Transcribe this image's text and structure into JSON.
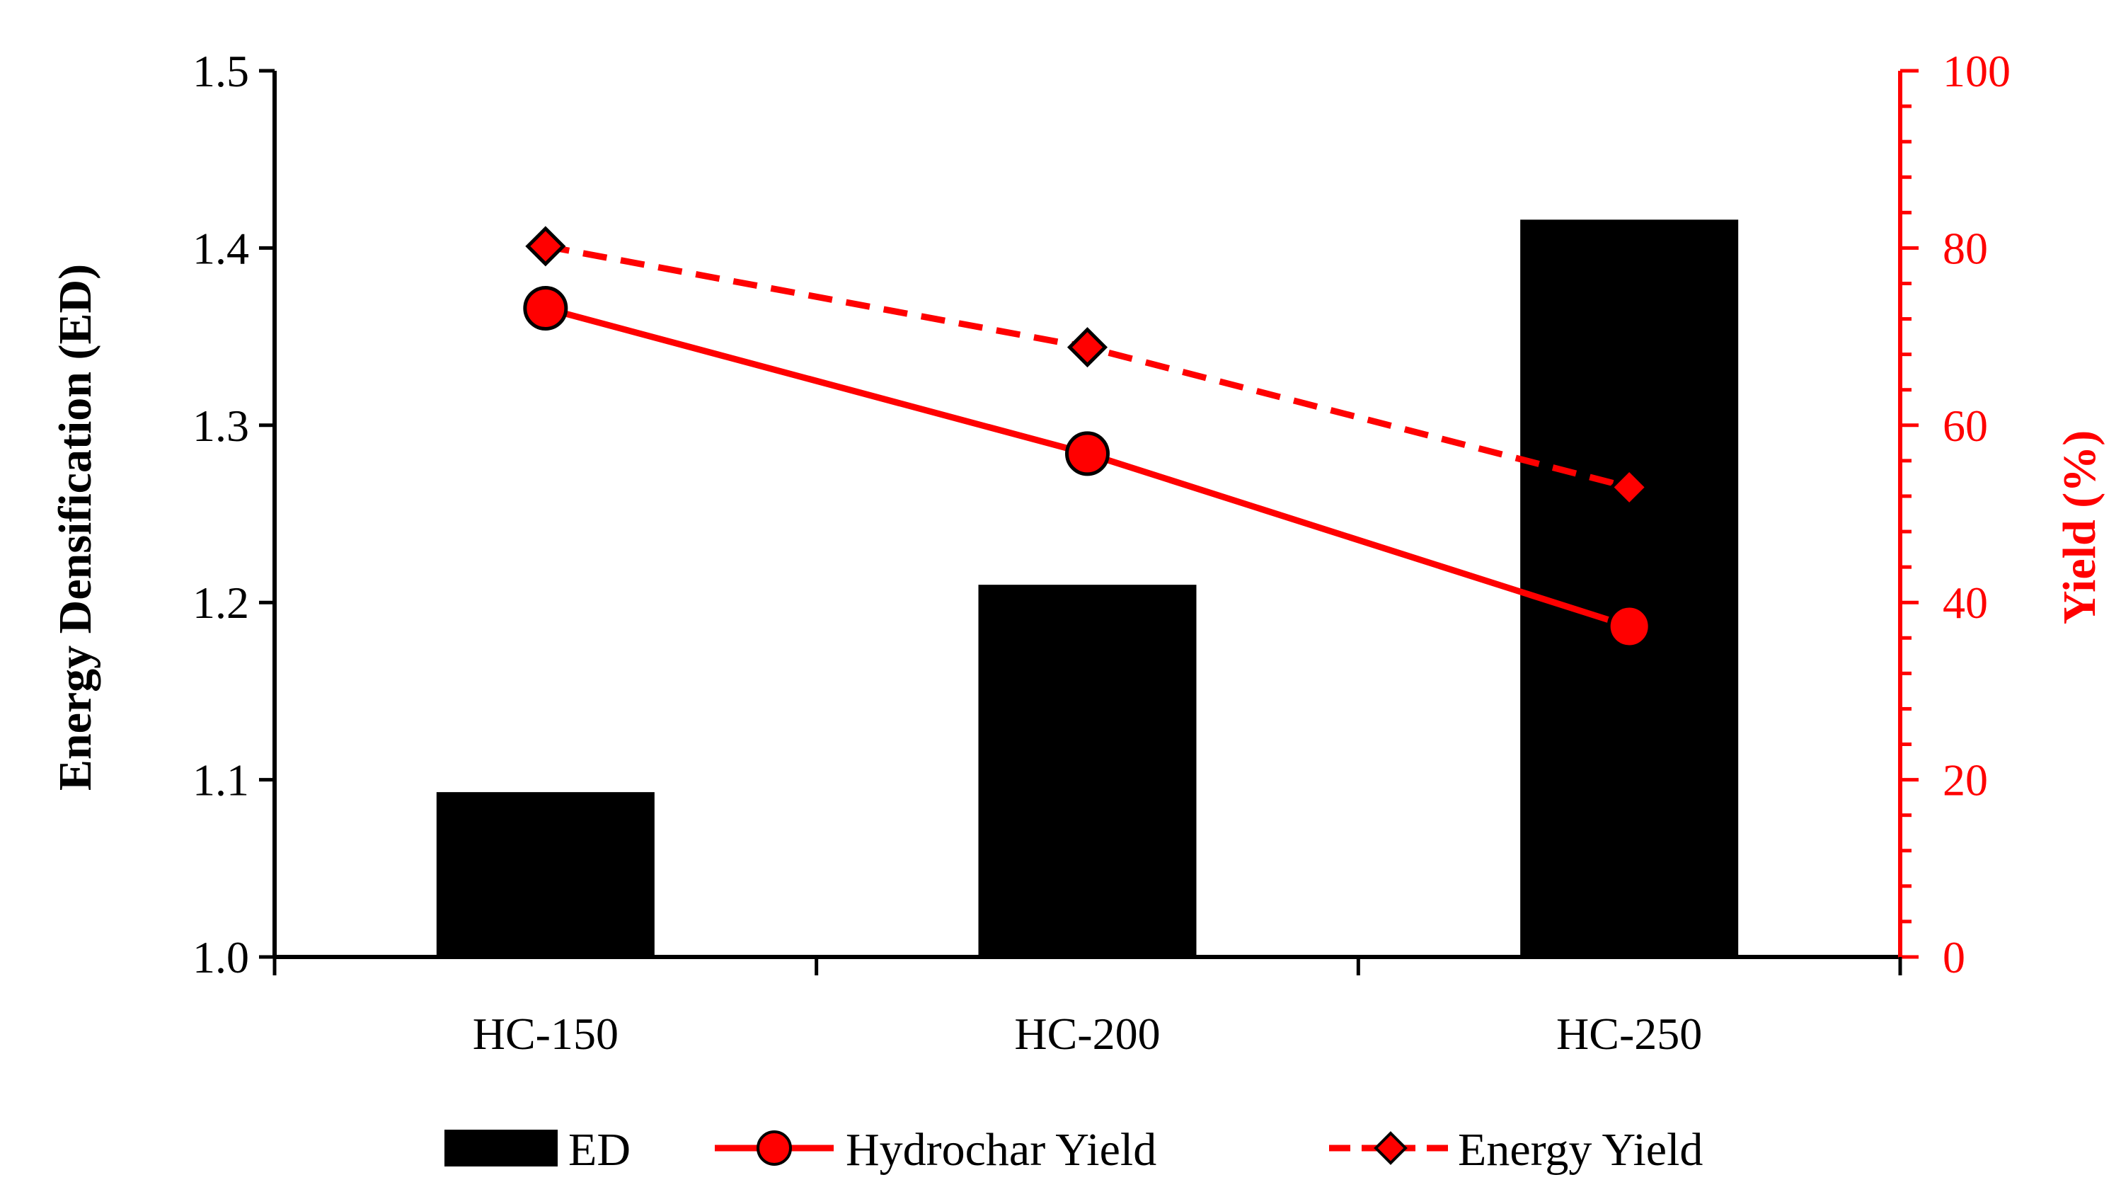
{
  "chart_data": {
    "type": "bar+line",
    "categories": [
      "HC-150",
      "HC-200",
      "HC-250"
    ],
    "bar_series": {
      "name": "ED",
      "values": [
        1.093,
        1.21,
        1.416
      ],
      "color": "#000000"
    },
    "line_series": [
      {
        "name": "Hydrochar Yield",
        "values": [
          73.2,
          56.8,
          37.3
        ],
        "color": "#ff0000",
        "marker": "circle",
        "dash": "solid"
      },
      {
        "name": "Energy Yield",
        "values": [
          80.2,
          68.8,
          53.0
        ],
        "color": "#ff0000",
        "marker": "diamond",
        "dash": "dashed"
      }
    ],
    "y_left": {
      "label": "Energy Densification (ED)",
      "lim": [
        1.0,
        1.5
      ],
      "ticks": [
        "1.0",
        "1.1",
        "1.2",
        "1.3",
        "1.4",
        "1.5"
      ],
      "color": "#000000"
    },
    "y_right": {
      "label": "Yield (%)",
      "lim": [
        0,
        100
      ],
      "ticks": [
        "0",
        "20",
        "40",
        "60",
        "80",
        "100"
      ],
      "color": "#ff0000"
    },
    "legend_placement": "bottom-center",
    "grid": false
  }
}
